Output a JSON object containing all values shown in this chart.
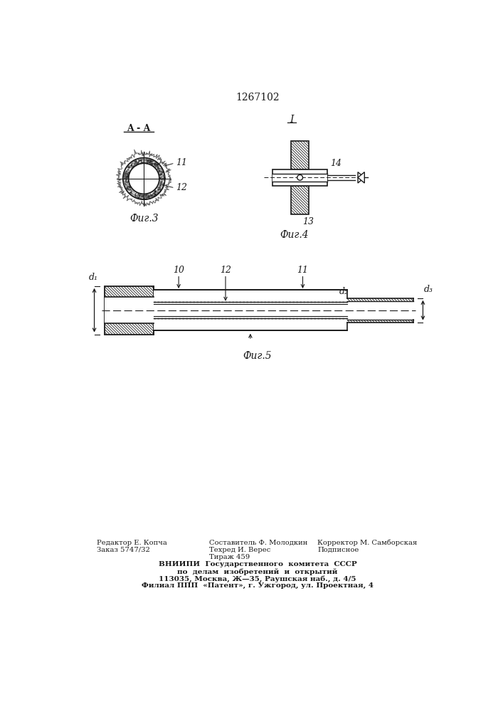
{
  "patent_number": "1267102",
  "bg_color": "#ffffff",
  "line_color": "#1a1a1a",
  "fig3_label": "Фиг.3",
  "fig4_label": "Фиг.4",
  "fig5_label": "Фиг.5",
  "section_label": "A - A",
  "fig4_arrow_label": "I",
  "label_11": "11",
  "label_12": "12",
  "label_13": "13",
  "label_14": "14",
  "label_10": "10",
  "label_d1": "d₁",
  "label_d2": "d₂",
  "label_d3": "d₃",
  "footer_line1": "Редактор Е. Копча",
  "footer_line2": "Заказ 5747/32",
  "footer_col2_line1": "Составитель Ф. Молодкин",
  "footer_col2_line2": "Техред И. Верес",
  "footer_col2_line3": "Тираж 459",
  "footer_col3_line1": "Корректор М. Самборская",
  "footer_col3_line2": "Подписное",
  "footer_vniip1": "ВНИИПИ  Государственного  комитета  СССР",
  "footer_vniip2": "по  делам  изобретений  и  открытий",
  "footer_vniip3": "113035, Москва, Ж—35, Раушская наб., д. 4/5",
  "footer_vniip4": "Филиал ППП  «Патент», г. Ужгород, ул. Проектная, 4"
}
